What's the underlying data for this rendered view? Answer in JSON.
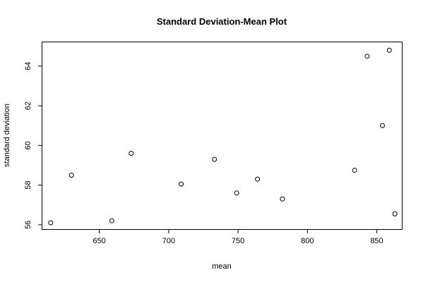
{
  "chart_data": {
    "type": "scatter",
    "title": "Standard Deviation-Mean Plot",
    "xlabel": "mean",
    "ylabel": "standard deviation",
    "xlim": [
      609,
      868
    ],
    "ylim": [
      55.78,
      65.2
    ],
    "xticks": [
      650,
      700,
      750,
      800,
      850
    ],
    "yticks": [
      56,
      58,
      60,
      62,
      64
    ],
    "grid": false,
    "points": [
      {
        "x": 615,
        "y": 56.1
      },
      {
        "x": 630,
        "y": 58.5
      },
      {
        "x": 659,
        "y": 56.2
      },
      {
        "x": 673,
        "y": 59.6
      },
      {
        "x": 709,
        "y": 58.05
      },
      {
        "x": 733,
        "y": 59.3
      },
      {
        "x": 749,
        "y": 57.6
      },
      {
        "x": 764,
        "y": 58.3
      },
      {
        "x": 782,
        "y": 57.3
      },
      {
        "x": 834,
        "y": 58.75
      },
      {
        "x": 843,
        "y": 64.5
      },
      {
        "x": 854,
        "y": 61.0
      },
      {
        "x": 859,
        "y": 64.8
      },
      {
        "x": 863,
        "y": 56.55
      }
    ]
  }
}
